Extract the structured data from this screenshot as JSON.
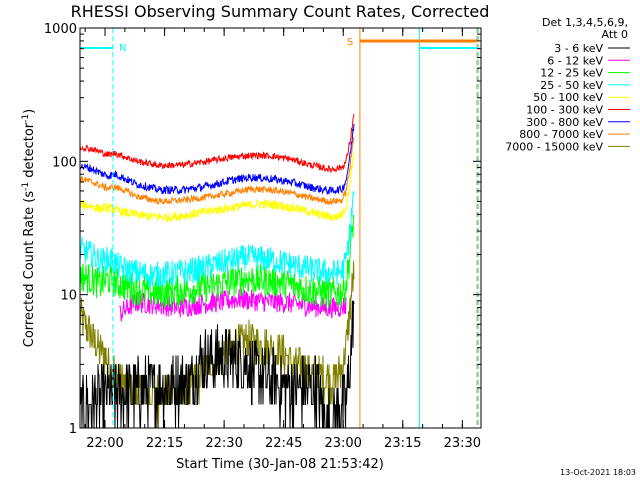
{
  "chart_data": {
    "type": "line",
    "title": "RHESSI Observing Summary Count Rates, Corrected",
    "xlabel": "Start Time (30-Jan-08 21:53:42)",
    "ylabel": "Corrected Count Rate (s",
    "ylabel_sup1": "-1",
    "ylabel_mid": " detector",
    "ylabel_sup2": "-1",
    "ylabel_end": ")",
    "yscale": "log",
    "ylim": [
      1,
      1000
    ],
    "xlim_min": [
      0,
      101
    ],
    "y_ticks": [
      {
        "value": 1,
        "label": "1"
      },
      {
        "value": 10,
        "label": "10"
      },
      {
        "value": 100,
        "label": "100"
      },
      {
        "value": 1000,
        "label": "1000"
      }
    ],
    "x_ticks": [
      {
        "min": 6.3,
        "label": "22:00"
      },
      {
        "min": 21.3,
        "label": "22:15"
      },
      {
        "min": 36.3,
        "label": "22:30"
      },
      {
        "min": 51.3,
        "label": "22:45"
      },
      {
        "min": 66.3,
        "label": "23:00"
      },
      {
        "min": 81.3,
        "label": "23:15"
      },
      {
        "min": 96.3,
        "label": "23:30"
      }
    ],
    "legend_header": [
      "Det 1,3,4,5,6,9,",
      "Att 0"
    ],
    "legend_placement": "right",
    "series": [
      {
        "name": "3 - 6 keV",
        "color": "#000000",
        "key": "s1",
        "values": [
          [
            0,
            1.4
          ],
          [
            8,
            1.8
          ],
          [
            14,
            1.9
          ],
          [
            28,
            2.2
          ],
          [
            30,
            3.2
          ],
          [
            35,
            3.4
          ],
          [
            41,
            3.2
          ],
          [
            45,
            2.5
          ],
          [
            52,
            2.0
          ],
          [
            60,
            2.0
          ],
          [
            62,
            1.0
          ],
          [
            64,
            1.3
          ],
          [
            67,
            1.6
          ],
          [
            68,
            3
          ],
          [
            69,
            9
          ]
        ]
      },
      {
        "name": "6 - 12 keV",
        "color": "#ff00ff",
        "key": "s2",
        "values": [
          [
            10,
            7.2
          ],
          [
            14,
            8.8
          ],
          [
            20,
            8.4
          ],
          [
            25,
            8.0
          ],
          [
            30,
            8.5
          ],
          [
            35,
            8.8
          ],
          [
            40,
            9.3
          ],
          [
            46,
            8.9
          ],
          [
            52,
            8.7
          ],
          [
            58,
            8.2
          ],
          [
            62,
            8.0
          ],
          [
            65,
            8.0
          ],
          [
            67,
            8.3
          ]
        ]
      },
      {
        "name": "12 - 25 keV",
        "color": "#00ff00",
        "key": "s3",
        "values": [
          [
            0,
            14
          ],
          [
            3,
            13
          ],
          [
            5,
            12
          ],
          [
            7,
            13
          ],
          [
            10,
            12
          ],
          [
            14,
            11
          ],
          [
            20,
            10.2
          ],
          [
            26,
            10.8
          ],
          [
            32,
            11.5
          ],
          [
            38,
            12.5
          ],
          [
            42,
            13.2
          ],
          [
            46,
            12.8
          ],
          [
            52,
            12.2
          ],
          [
            58,
            10.8
          ],
          [
            63,
            10.2
          ],
          [
            66,
            10.5
          ],
          [
            67,
            12
          ],
          [
            68,
            20
          ],
          [
            69,
            40
          ]
        ]
      },
      {
        "name": "25 - 50 keV",
        "color": "#00ffff",
        "key": "s4",
        "values": [
          [
            0,
            22
          ],
          [
            3,
            20
          ],
          [
            5,
            18
          ],
          [
            8,
            18.5
          ],
          [
            10,
            16
          ],
          [
            13,
            15
          ],
          [
            18,
            14
          ],
          [
            24,
            14.5
          ],
          [
            30,
            15.5
          ],
          [
            36,
            17.5
          ],
          [
            42,
            19
          ],
          [
            47,
            18.5
          ],
          [
            52,
            17.2
          ],
          [
            58,
            15.5
          ],
          [
            63,
            14.5
          ],
          [
            66,
            15
          ],
          [
            67,
            18
          ],
          [
            68,
            30
          ],
          [
            69,
            60
          ]
        ]
      },
      {
        "name": "50 - 100 keV",
        "color": "#ffff00",
        "key": "s5",
        "values": [
          [
            0,
            48
          ],
          [
            3,
            46
          ],
          [
            5,
            44
          ],
          [
            7,
            45
          ],
          [
            9,
            43
          ],
          [
            12,
            41
          ],
          [
            16,
            39
          ],
          [
            22,
            38
          ],
          [
            28,
            40
          ],
          [
            34,
            43
          ],
          [
            40,
            46
          ],
          [
            45,
            48
          ],
          [
            50,
            47
          ],
          [
            55,
            44
          ],
          [
            60,
            40
          ],
          [
            64,
            38
          ],
          [
            66,
            40
          ],
          [
            67,
            46
          ],
          [
            68,
            70
          ],
          [
            69,
            120
          ]
        ]
      },
      {
        "name": "100 - 300 keV",
        "color": "#ff0000",
        "key": "s6",
        "values": [
          [
            0,
            128
          ],
          [
            3,
            124
          ],
          [
            5,
            118
          ],
          [
            7,
            112
          ],
          [
            9,
            115
          ],
          [
            11,
            109
          ],
          [
            14,
            101
          ],
          [
            20,
            93
          ],
          [
            26,
            94
          ],
          [
            32,
            100
          ],
          [
            38,
            107
          ],
          [
            43,
            111
          ],
          [
            48,
            110
          ],
          [
            53,
            104
          ],
          [
            58,
            94
          ],
          [
            63,
            87
          ],
          [
            66,
            90
          ],
          [
            67,
            100
          ],
          [
            68,
            140
          ],
          [
            69,
            230
          ]
        ]
      },
      {
        "name": "300 - 800 keV",
        "color": "#0000ff",
        "key": "s7",
        "values": [
          [
            0,
            92
          ],
          [
            3,
            88
          ],
          [
            5,
            82
          ],
          [
            7,
            78
          ],
          [
            9,
            80
          ],
          [
            11,
            75
          ],
          [
            14,
            68
          ],
          [
            20,
            61
          ],
          [
            26,
            61
          ],
          [
            32,
            65
          ],
          [
            38,
            72
          ],
          [
            43,
            76
          ],
          [
            48,
            74
          ],
          [
            53,
            70
          ],
          [
            58,
            64
          ],
          [
            63,
            60
          ],
          [
            66,
            62
          ],
          [
            67,
            72
          ],
          [
            68,
            110
          ],
          [
            69,
            190
          ]
        ]
      },
      {
        "name": "800 - 7000 keV",
        "color": "#ff8000",
        "key": "s8",
        "values": [
          [
            0,
            74
          ],
          [
            3,
            70
          ],
          [
            5,
            66
          ],
          [
            7,
            63
          ],
          [
            9,
            64
          ],
          [
            11,
            61
          ],
          [
            14,
            55
          ],
          [
            20,
            50
          ],
          [
            26,
            51
          ],
          [
            32,
            54
          ],
          [
            38,
            58
          ],
          [
            43,
            62
          ],
          [
            48,
            61
          ],
          [
            53,
            58
          ],
          [
            58,
            53
          ],
          [
            63,
            50
          ],
          [
            66,
            51
          ],
          [
            67,
            60
          ],
          [
            68,
            90
          ],
          [
            69,
            160
          ]
        ]
      },
      {
        "name": "7000 - 15000 keV",
        "color": "#808000",
        "key": "s9",
        "values": [
          [
            0,
            7
          ],
          [
            2,
            5.5
          ],
          [
            4,
            4.2
          ],
          [
            6,
            3.6
          ],
          [
            8,
            2.8
          ],
          [
            10,
            2.3
          ],
          [
            12,
            1.9
          ],
          [
            16,
            1.8
          ],
          [
            22,
            1.7
          ],
          [
            26,
            1.9
          ],
          [
            30,
            2.4
          ],
          [
            34,
            3.2
          ],
          [
            38,
            4.0
          ],
          [
            42,
            4.5
          ],
          [
            46,
            4.2
          ],
          [
            50,
            3.8
          ],
          [
            54,
            3.0
          ],
          [
            58,
            2.6
          ],
          [
            62,
            2.4
          ],
          [
            64,
            2.3
          ],
          [
            66,
            2.8
          ],
          [
            67,
            4
          ],
          [
            68,
            8
          ],
          [
            69,
            15
          ]
        ]
      }
    ],
    "markers": [
      {
        "label": "N",
        "color": "#00ffff"
      },
      {
        "label": "S",
        "color": "#ff8000"
      }
    ],
    "night_bars": [
      [
        0,
        8.3
      ],
      [
        85.5,
        100
      ]
    ],
    "saa_bars": [
      [
        70.5,
        100
      ]
    ],
    "vlines": [
      {
        "x": 0,
        "color": "#00ffff",
        "style": "solid"
      },
      {
        "x": 8.3,
        "color": "#00ffff",
        "style": "dashed"
      },
      {
        "x": 70.5,
        "color": "#ff8000",
        "style": "solid"
      },
      {
        "x": 85.5,
        "color": "#00ffff",
        "style": "solid"
      },
      {
        "x": 100,
        "color": "#ff8000",
        "style": "dashed"
      },
      {
        "x": 100.3,
        "color": "#00ffff",
        "style": "dashed"
      }
    ]
  },
  "footer": {
    "date_stamp": "13-Oct-2021 18:03"
  }
}
